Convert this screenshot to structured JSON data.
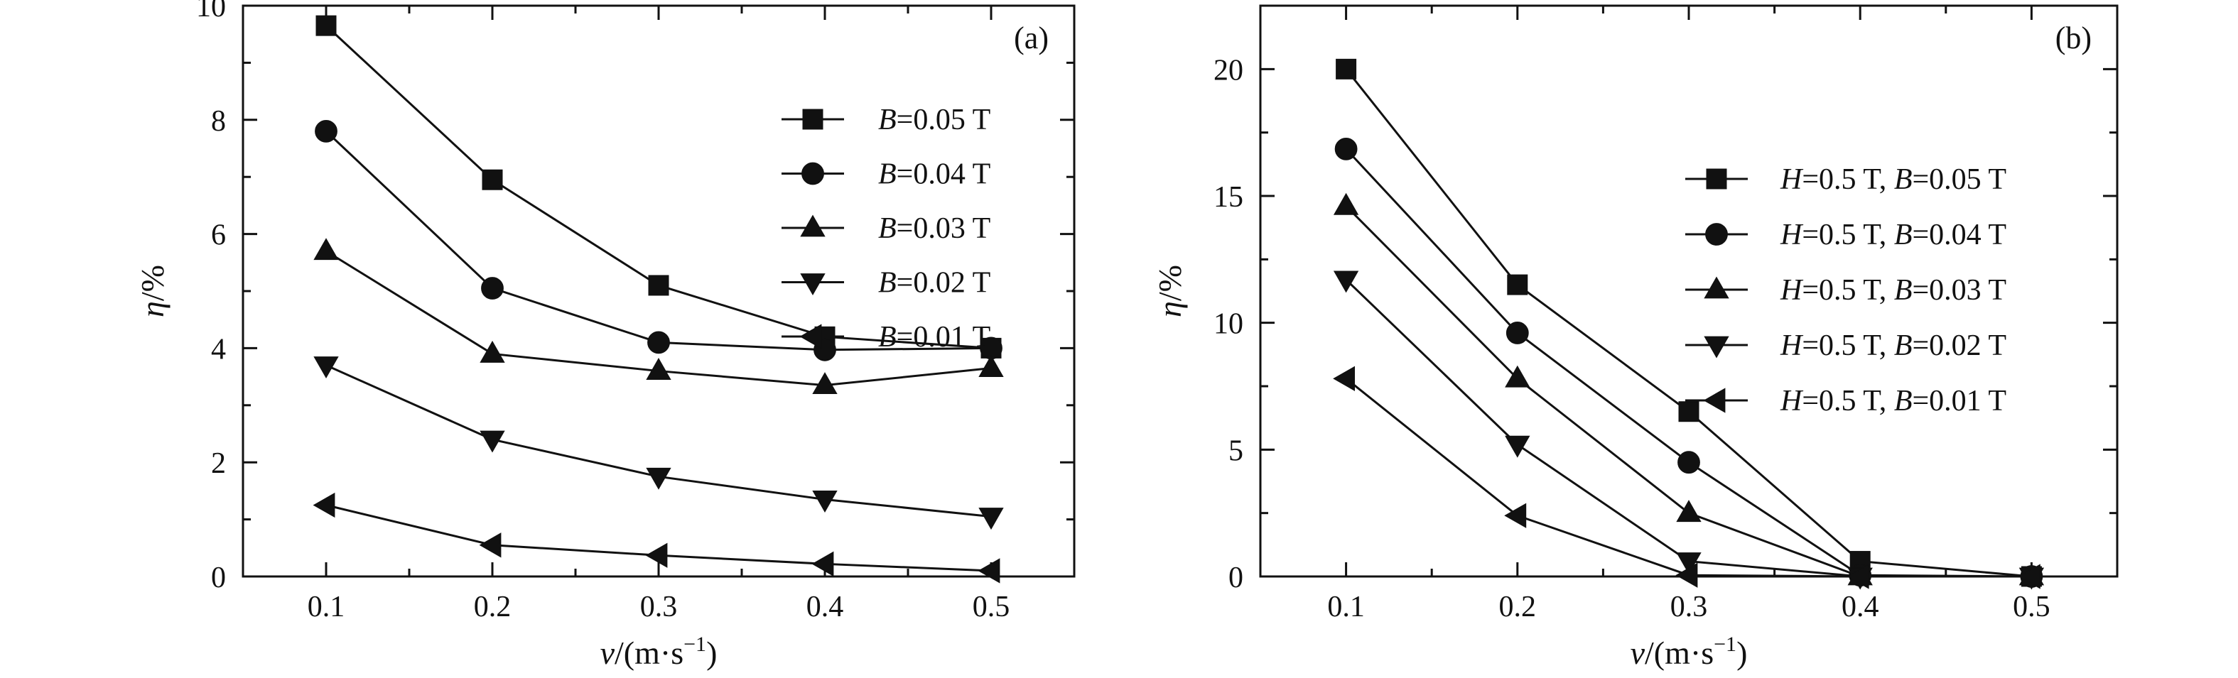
{
  "chart_data": [
    {
      "type": "line",
      "panel_label": "(a)",
      "xlabel": {
        "var": "v",
        "text": "/(m·s",
        "sup": "−1",
        "close": ")"
      },
      "ylabel": {
        "var": "η",
        "text": "/%"
      },
      "xlim": [
        0.05,
        0.55
      ],
      "ylim": [
        0,
        10
      ],
      "x": [
        0.1,
        0.2,
        0.3,
        0.4,
        0.5
      ],
      "xticks": [
        "0.1",
        "0.2",
        "0.3",
        "0.4",
        "0.5"
      ],
      "yticks": [
        0,
        2,
        4,
        6,
        8,
        10
      ],
      "legend_position": "right-middle",
      "series": [
        {
          "name": "B=0.05 T",
          "legend": {
            "prefix": "",
            "var": "B",
            "rest": "=0.05 T"
          },
          "marker": "square",
          "values": [
            9.65,
            6.95,
            5.1,
            4.2,
            4.0
          ]
        },
        {
          "name": "B=0.04 T",
          "legend": {
            "prefix": "",
            "var": "B",
            "rest": "=0.04 T"
          },
          "marker": "circle",
          "values": [
            7.8,
            5.05,
            4.1,
            3.97,
            4.0
          ]
        },
        {
          "name": "B=0.03 T",
          "legend": {
            "prefix": "",
            "var": "B",
            "rest": "=0.03 T"
          },
          "marker": "triangle-up",
          "values": [
            5.7,
            3.9,
            3.6,
            3.35,
            3.65
          ]
        },
        {
          "name": "B=0.02 T",
          "legend": {
            "prefix": "",
            "var": "B",
            "rest": "=0.02 T"
          },
          "marker": "triangle-down",
          "values": [
            3.7,
            2.4,
            1.75,
            1.35,
            1.05
          ]
        },
        {
          "name": "B=0.01 T",
          "legend": {
            "prefix": "",
            "var": "B",
            "rest": "=0.01 T"
          },
          "marker": "triangle-left",
          "values": [
            1.25,
            0.55,
            0.37,
            0.22,
            0.1
          ]
        }
      ]
    },
    {
      "type": "line",
      "panel_label": "(b)",
      "xlabel": {
        "var": "v",
        "text": "/(m·s",
        "sup": "−1",
        "close": ")"
      },
      "ylabel": {
        "var": "η",
        "text": "/%"
      },
      "xlim": [
        0.05,
        0.55
      ],
      "ylim": [
        0,
        22.5
      ],
      "x": [
        0.1,
        0.2,
        0.3,
        0.4,
        0.5
      ],
      "xticks": [
        "0.1",
        "0.2",
        "0.3",
        "0.4",
        "0.5"
      ],
      "yticks": [
        0,
        5,
        10,
        15,
        20
      ],
      "legend_position": "right-middle",
      "series": [
        {
          "name": "H=0.5 T, B=0.05 T",
          "legend": {
            "prefix": "H",
            "mid": "=0.5 T, ",
            "var": "B",
            "rest": "=0.05 T"
          },
          "marker": "square",
          "values": [
            20.0,
            11.5,
            6.5,
            0.6,
            0.0
          ]
        },
        {
          "name": "H=0.5 T, B=0.04 T",
          "legend": {
            "prefix": "H",
            "mid": "=0.5 T, ",
            "var": "B",
            "rest": "=0.04 T"
          },
          "marker": "circle",
          "values": [
            16.85,
            9.6,
            4.5,
            0.05,
            0.0
          ]
        },
        {
          "name": "H=0.5 T, B=0.03 T",
          "legend": {
            "prefix": "H",
            "mid": "=0.5 T, ",
            "var": "B",
            "rest": "=0.03 T"
          },
          "marker": "triangle-up",
          "values": [
            14.6,
            7.8,
            2.5,
            0.0,
            0.0
          ]
        },
        {
          "name": "H=0.5 T, B=0.02 T",
          "legend": {
            "prefix": "H",
            "mid": "=0.5 T, ",
            "var": "B",
            "rest": "=0.02 T"
          },
          "marker": "triangle-down",
          "values": [
            11.7,
            5.2,
            0.6,
            0.0,
            0.0
          ]
        },
        {
          "name": "H=0.5 T, B=0.01 T",
          "legend": {
            "prefix": "H",
            "mid": "=0.5 T, ",
            "var": "B",
            "rest": "=0.01 T"
          },
          "marker": "triangle-left",
          "values": [
            7.8,
            2.4,
            0.05,
            0.0,
            0.0
          ]
        }
      ]
    }
  ]
}
